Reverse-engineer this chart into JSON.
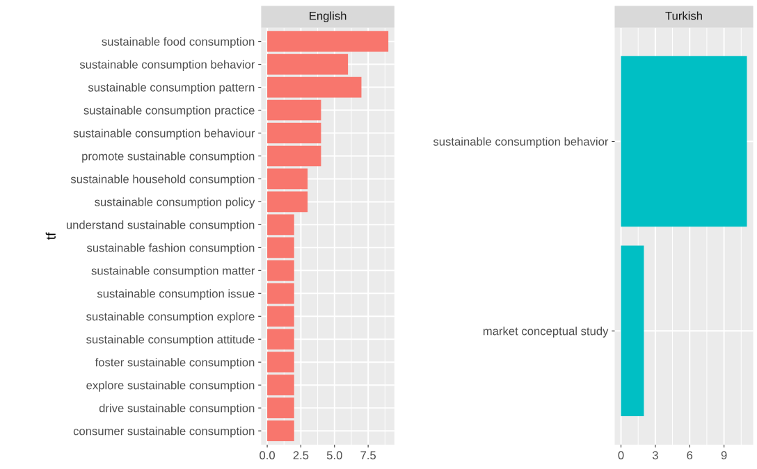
{
  "chart_data": [
    {
      "type": "bar",
      "orientation": "horizontal",
      "title": "English",
      "ylabel": "tf",
      "categories": [
        "sustainable food consumption",
        "sustainable consumption behavior",
        "sustainable consumption pattern",
        "sustainable consumption practice",
        "sustainable consumption behaviour",
        "promote sustainable consumption",
        "sustainable household consumption",
        "sustainable consumption policy",
        "understand sustainable consumption",
        "sustainable fashion consumption",
        "sustainable consumption matter",
        "sustainable consumption issue",
        "sustainable consumption explore",
        "sustainable consumption attitude",
        "foster sustainable consumption",
        "explore sustainable consumption",
        "drive sustainable consumption",
        "consumer sustainable consumption"
      ],
      "values": [
        9,
        6,
        7,
        4,
        4,
        4,
        3,
        3,
        2,
        2,
        2,
        2,
        2,
        2,
        2,
        2,
        2,
        2
      ],
      "color": "#f8766d",
      "xlim": [
        -0.45,
        9.45
      ],
      "xticks": [
        {
          "value": 0,
          "label": "0.0"
        },
        2.5,
        {
          "value": 5,
          "label": "5.0"
        },
        7.5
      ],
      "grid": true,
      "legend": false
    },
    {
      "type": "bar",
      "orientation": "horizontal",
      "title": "Turkish",
      "categories": [
        "sustainable consumption behavior",
        "market conceptual study"
      ],
      "values": [
        11,
        2
      ],
      "color": "#00bfc4",
      "xlim": [
        -0.55,
        11.55
      ],
      "xticks": [
        0,
        3,
        6,
        9
      ],
      "grid": true,
      "legend": false
    }
  ]
}
